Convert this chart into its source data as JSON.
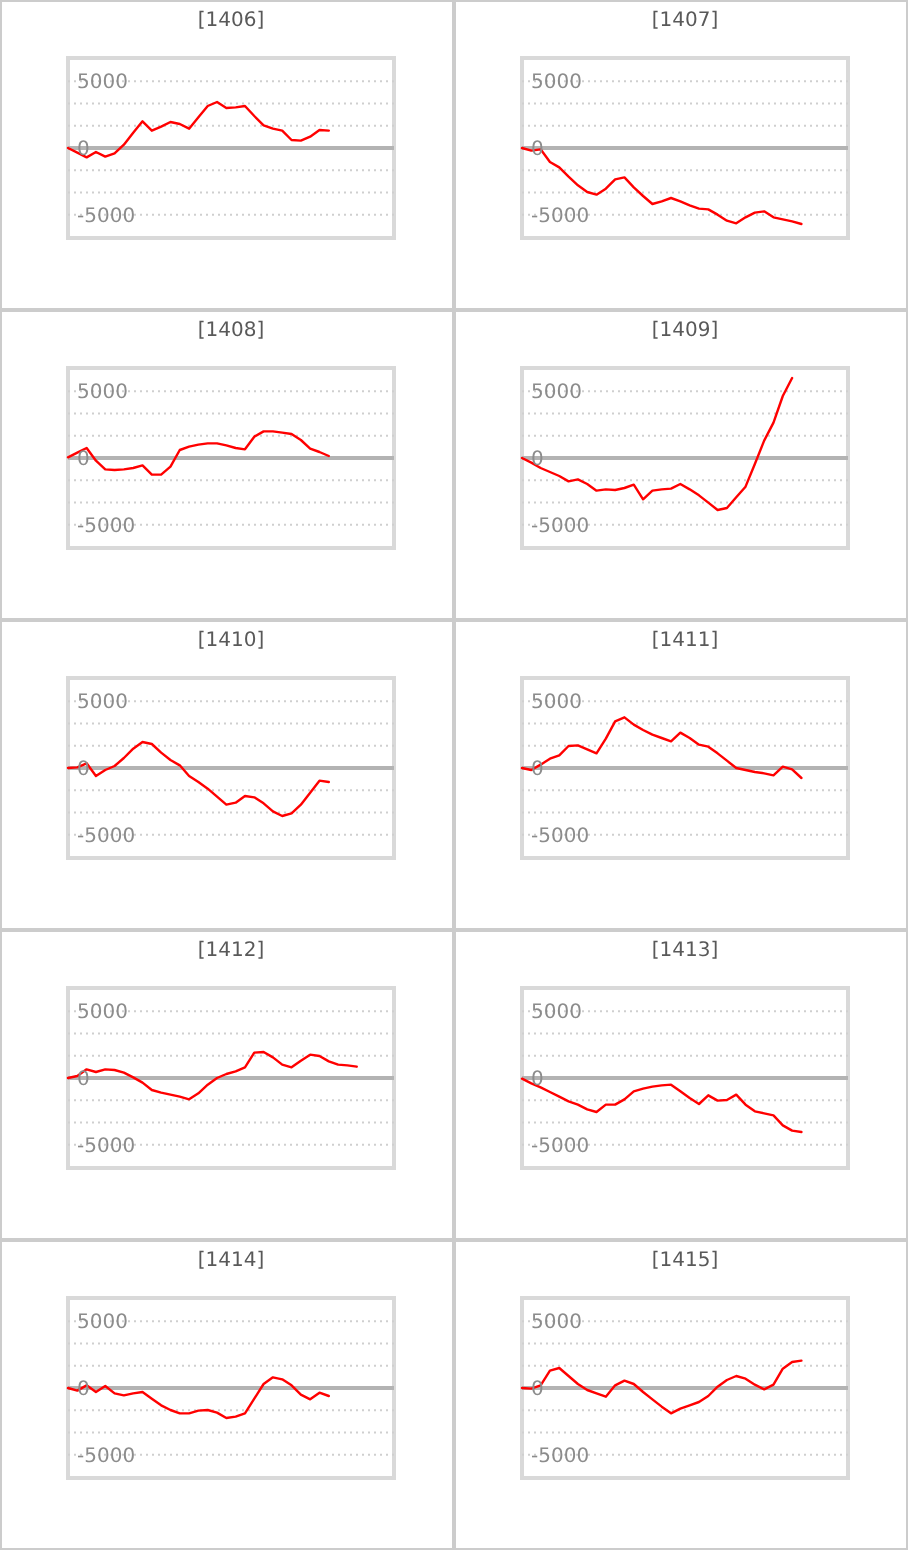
{
  "chart_data": [
    {
      "type": "line",
      "title": "[1406]",
      "categories": [
        null,
        null,
        null,
        null,
        null,
        null,
        null,
        null,
        null,
        null,
        null,
        null,
        null,
        null,
        null,
        null,
        null,
        null,
        null,
        null,
        null,
        null,
        null,
        null,
        null,
        null,
        null,
        null,
        null,
        null,
        null,
        null,
        null,
        null,
        null,
        null
      ],
      "ylim": [
        -6750,
        6750
      ],
      "yticks": [
        -5000,
        {
          "value": -3333,
          "label": null
        },
        {
          "value": -1667,
          "label": null
        },
        0,
        {
          "value": 1667,
          "label": null
        },
        {
          "value": 3333,
          "label": null
        },
        5000
      ],
      "grid": true,
      "ref_lines": [
        {
          "axis": "y",
          "value": 0,
          "color": "#b3b3b3"
        }
      ],
      "series": [
        {
          "color": "#ff0000",
          "values": [
            0,
            -350,
            -700,
            -300,
            -650,
            -400,
            250,
            1150,
            2000,
            1300,
            1600,
            1950,
            1800,
            1450,
            2300,
            3150,
            3450,
            3000,
            3050,
            3150,
            2400,
            1700,
            1450,
            1300,
            600,
            550,
            850,
            1350,
            1300,
            null,
            null,
            null,
            null,
            null,
            null,
            null
          ]
        }
      ]
    },
    {
      "type": "line",
      "title": "[1407]",
      "categories": [
        null,
        null,
        null,
        null,
        null,
        null,
        null,
        null,
        null,
        null,
        null,
        null,
        null,
        null,
        null,
        null,
        null,
        null,
        null,
        null,
        null,
        null,
        null,
        null,
        null,
        null,
        null,
        null,
        null,
        null,
        null,
        null,
        null,
        null,
        null,
        null
      ],
      "ylim": [
        -6750,
        6750
      ],
      "yticks": [
        -5000,
        {
          "value": -3333,
          "label": null
        },
        {
          "value": -1667,
          "label": null
        },
        0,
        {
          "value": 1667,
          "label": null
        },
        {
          "value": 3333,
          "label": null
        },
        5000
      ],
      "grid": true,
      "ref_lines": [
        {
          "axis": "y",
          "value": 0,
          "color": "#b3b3b3"
        }
      ],
      "series": [
        {
          "color": "#ff0000",
          "values": [
            0,
            -200,
            -100,
            -1050,
            -1450,
            -2150,
            -2800,
            -3300,
            -3500,
            -3050,
            -2350,
            -2200,
            -2950,
            -3600,
            -4200,
            -4000,
            -3750,
            -4000,
            -4300,
            -4550,
            -4600,
            -5000,
            -5450,
            -5650,
            -5200,
            -4850,
            -4750,
            -5200,
            -5350,
            -5500,
            -5700,
            null,
            null,
            null,
            null,
            null
          ]
        }
      ]
    },
    {
      "type": "line",
      "title": "[1408]",
      "categories": [
        null,
        null,
        null,
        null,
        null,
        null,
        null,
        null,
        null,
        null,
        null,
        null,
        null,
        null,
        null,
        null,
        null,
        null,
        null,
        null,
        null,
        null,
        null,
        null,
        null,
        null,
        null,
        null,
        null,
        null,
        null,
        null,
        null,
        null,
        null,
        null
      ],
      "ylim": [
        -6750,
        6750
      ],
      "yticks": [
        -5000,
        {
          "value": -3333,
          "label": null
        },
        {
          "value": -1667,
          "label": null
        },
        0,
        {
          "value": 1667,
          "label": null
        },
        {
          "value": 3333,
          "label": null
        },
        5000
      ],
      "grid": true,
      "ref_lines": [
        {
          "axis": "y",
          "value": 0,
          "color": "#b3b3b3"
        }
      ],
      "series": [
        {
          "color": "#ff0000",
          "values": [
            50,
            400,
            750,
            -200,
            -850,
            -900,
            -850,
            -750,
            -550,
            -1250,
            -1250,
            -650,
            600,
            850,
            1000,
            1100,
            1100,
            950,
            750,
            650,
            1600,
            2000,
            2000,
            1900,
            1800,
            1350,
            700,
            450,
            150,
            null,
            null,
            null,
            null,
            null,
            null,
            null
          ]
        }
      ]
    },
    {
      "type": "line",
      "title": "[1409]",
      "categories": [
        null,
        null,
        null,
        null,
        null,
        null,
        null,
        null,
        null,
        null,
        null,
        null,
        null,
        null,
        null,
        null,
        null,
        null,
        null,
        null,
        null,
        null,
        null,
        null,
        null,
        null,
        null,
        null,
        null,
        null,
        null,
        null,
        null,
        null,
        null,
        null
      ],
      "ylim": [
        -6750,
        6750
      ],
      "yticks": [
        -5000,
        {
          "value": -3333,
          "label": null
        },
        {
          "value": -1667,
          "label": null
        },
        0,
        {
          "value": 1667,
          "label": null
        },
        {
          "value": 3333,
          "label": null
        },
        5000
      ],
      "grid": true,
      "ref_lines": [
        {
          "axis": "y",
          "value": 0,
          "color": "#b3b3b3"
        }
      ],
      "series": [
        {
          "color": "#ff0000",
          "values": [
            0,
            -350,
            -750,
            -1050,
            -1350,
            -1750,
            -1600,
            -1950,
            -2450,
            -2350,
            -2400,
            -2250,
            -2000,
            -3100,
            -2450,
            -2350,
            -2300,
            -1950,
            -2350,
            -2800,
            -3350,
            -3900,
            -3750,
            -2950,
            -2150,
            -450,
            1300,
            2650,
            4650,
            6000,
            null,
            null,
            null,
            null,
            null,
            null
          ]
        }
      ]
    },
    {
      "type": "line",
      "title": "[1410]",
      "categories": [
        null,
        null,
        null,
        null,
        null,
        null,
        null,
        null,
        null,
        null,
        null,
        null,
        null,
        null,
        null,
        null,
        null,
        null,
        null,
        null,
        null,
        null,
        null,
        null,
        null,
        null,
        null,
        null,
        null,
        null,
        null,
        null,
        null,
        null,
        null,
        null
      ],
      "ylim": [
        -6750,
        6750
      ],
      "yticks": [
        -5000,
        {
          "value": -3333,
          "label": null
        },
        {
          "value": -1667,
          "label": null
        },
        0,
        {
          "value": 1667,
          "label": null
        },
        {
          "value": 3333,
          "label": null
        },
        5000
      ],
      "grid": true,
      "ref_lines": [
        {
          "axis": "y",
          "value": 0,
          "color": "#b3b3b3"
        }
      ],
      "series": [
        {
          "color": "#ff0000",
          "values": [
            0,
            50,
            350,
            -600,
            -150,
            150,
            750,
            1450,
            1950,
            1800,
            1150,
            600,
            200,
            -600,
            -1050,
            -1550,
            -2150,
            -2750,
            -2600,
            -2100,
            -2200,
            -2650,
            -3250,
            -3600,
            -3400,
            -2750,
            -1850,
            -950,
            -1050,
            null,
            null,
            null,
            null,
            null,
            null,
            null
          ]
        }
      ]
    },
    {
      "type": "line",
      "title": "[1411]",
      "categories": [
        null,
        null,
        null,
        null,
        null,
        null,
        null,
        null,
        null,
        null,
        null,
        null,
        null,
        null,
        null,
        null,
        null,
        null,
        null,
        null,
        null,
        null,
        null,
        null,
        null,
        null,
        null,
        null,
        null,
        null,
        null,
        null,
        null,
        null,
        null,
        null
      ],
      "ylim": [
        -6750,
        6750
      ],
      "yticks": [
        -5000,
        {
          "value": -3333,
          "label": null
        },
        {
          "value": -1667,
          "label": null
        },
        0,
        {
          "value": 1667,
          "label": null
        },
        {
          "value": 3333,
          "label": null
        },
        5000
      ],
      "grid": true,
      "ref_lines": [
        {
          "axis": "y",
          "value": 0,
          "color": "#b3b3b3"
        }
      ],
      "series": [
        {
          "color": "#ff0000",
          "values": [
            0,
            -150,
            250,
            700,
            950,
            1650,
            1700,
            1400,
            1100,
            2200,
            3500,
            3800,
            3250,
            2850,
            2500,
            2250,
            2000,
            2650,
            2250,
            1750,
            1600,
            1100,
            550,
            0,
            -150,
            -300,
            -400,
            -550,
            100,
            -100,
            -750,
            null,
            null,
            null,
            null,
            null
          ]
        }
      ]
    },
    {
      "type": "line",
      "title": "[1412]",
      "categories": [
        null,
        null,
        null,
        null,
        null,
        null,
        null,
        null,
        null,
        null,
        null,
        null,
        null,
        null,
        null,
        null,
        null,
        null,
        null,
        null,
        null,
        null,
        null,
        null,
        null,
        null,
        null,
        null,
        null,
        null,
        null,
        null,
        null,
        null,
        null,
        null
      ],
      "ylim": [
        -6750,
        6750
      ],
      "yticks": [
        -5000,
        {
          "value": -3333,
          "label": null
        },
        {
          "value": -1667,
          "label": null
        },
        0,
        {
          "value": 1667,
          "label": null
        },
        {
          "value": 3333,
          "label": null
        },
        5000
      ],
      "grid": true,
      "ref_lines": [
        {
          "axis": "y",
          "value": 0,
          "color": "#b3b3b3"
        }
      ],
      "series": [
        {
          "color": "#ff0000",
          "values": [
            0,
            150,
            650,
            450,
            650,
            600,
            400,
            50,
            -350,
            -900,
            -1100,
            -1250,
            -1400,
            -1600,
            -1150,
            -500,
            0,
            300,
            500,
            800,
            1900,
            1950,
            1550,
            1000,
            800,
            1300,
            1750,
            1650,
            1250,
            1000,
            950,
            850,
            null,
            null,
            null,
            null
          ]
        }
      ]
    },
    {
      "type": "line",
      "title": "[1413]",
      "categories": [
        null,
        null,
        null,
        null,
        null,
        null,
        null,
        null,
        null,
        null,
        null,
        null,
        null,
        null,
        null,
        null,
        null,
        null,
        null,
        null,
        null,
        null,
        null,
        null,
        null,
        null,
        null,
        null,
        null,
        null,
        null,
        null,
        null,
        null,
        null,
        null
      ],
      "ylim": [
        -6750,
        6750
      ],
      "yticks": [
        -5000,
        {
          "value": -3333,
          "label": null
        },
        {
          "value": -1667,
          "label": null
        },
        0,
        {
          "value": 1667,
          "label": null
        },
        {
          "value": 3333,
          "label": null
        },
        5000
      ],
      "grid": true,
      "ref_lines": [
        {
          "axis": "y",
          "value": 0,
          "color": "#b3b3b3"
        }
      ],
      "series": [
        {
          "color": "#ff0000",
          "values": [
            -50,
            -400,
            -700,
            -1050,
            -1400,
            -1750,
            -2000,
            -2350,
            -2550,
            -2000,
            -2000,
            -1600,
            -1000,
            -800,
            -650,
            -550,
            -500,
            -1000,
            -1500,
            -1950,
            -1300,
            -1700,
            -1650,
            -1250,
            -2000,
            -2500,
            -2650,
            -2800,
            -3550,
            -3950,
            -4050,
            null,
            null,
            null,
            null,
            null
          ]
        }
      ]
    },
    {
      "type": "line",
      "title": "[1414]",
      "categories": [
        null,
        null,
        null,
        null,
        null,
        null,
        null,
        null,
        null,
        null,
        null,
        null,
        null,
        null,
        null,
        null,
        null,
        null,
        null,
        null,
        null,
        null,
        null,
        null,
        null,
        null,
        null,
        null,
        null,
        null,
        null,
        null,
        null,
        null,
        null,
        null
      ],
      "ylim": [
        -6750,
        6750
      ],
      "yticks": [
        -5000,
        {
          "value": -3333,
          "label": null
        },
        {
          "value": -1667,
          "label": null
        },
        0,
        {
          "value": 1667,
          "label": null
        },
        {
          "value": 3333,
          "label": null
        },
        5000
      ],
      "grid": true,
      "ref_lines": [
        {
          "axis": "y",
          "value": 0,
          "color": "#b3b3b3"
        }
      ],
      "series": [
        {
          "color": "#ff0000",
          "values": [
            0,
            -200,
            200,
            -300,
            150,
            -400,
            -550,
            -400,
            -300,
            -800,
            -1300,
            -1650,
            -1900,
            -1900,
            -1700,
            -1650,
            -1850,
            -2250,
            -2150,
            -1900,
            -800,
            300,
            800,
            650,
            200,
            -500,
            -850,
            -350,
            -600,
            null,
            null,
            null,
            null,
            null,
            null,
            null
          ]
        }
      ]
    },
    {
      "type": "line",
      "title": "[1415]",
      "categories": [
        null,
        null,
        null,
        null,
        null,
        null,
        null,
        null,
        null,
        null,
        null,
        null,
        null,
        null,
        null,
        null,
        null,
        null,
        null,
        null,
        null,
        null,
        null,
        null,
        null,
        null,
        null,
        null,
        null,
        null,
        null,
        null,
        null,
        null,
        null,
        null
      ],
      "ylim": [
        -6750,
        6750
      ],
      "yticks": [
        -5000,
        {
          "value": -3333,
          "label": null
        },
        {
          "value": -1667,
          "label": null
        },
        0,
        {
          "value": 1667,
          "label": null
        },
        {
          "value": 3333,
          "label": null
        },
        5000
      ],
      "grid": true,
      "ref_lines": [
        {
          "axis": "y",
          "value": 0,
          "color": "#b3b3b3"
        }
      ],
      "series": [
        {
          "color": "#ff0000",
          "values": [
            0,
            -50,
            200,
            1300,
            1500,
            900,
            300,
            -150,
            -400,
            -650,
            200,
            550,
            300,
            -300,
            -850,
            -1400,
            -1900,
            -1550,
            -1300,
            -1050,
            -600,
            100,
            600,
            900,
            700,
            250,
            -100,
            250,
            1450,
            1950,
            2050,
            null,
            null,
            null,
            null,
            null
          ]
        }
      ]
    }
  ]
}
